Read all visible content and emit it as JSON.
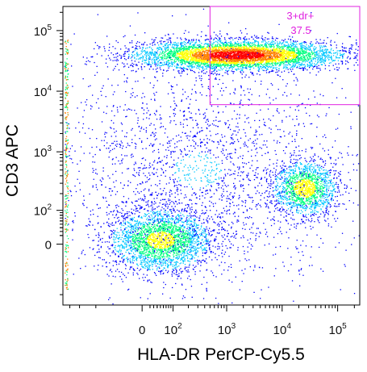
{
  "chart_data": {
    "type": "scatter",
    "title": "",
    "xlabel": "HLA-DR PerCP-Cy5.5",
    "ylabel": "CD3 APC",
    "x_scale": "biexponential",
    "y_scale": "biexponential",
    "xlim": [
      -800,
      250000
    ],
    "ylim": [
      -300,
      250000
    ],
    "x_ticks": [
      {
        "value": 0,
        "base": "0",
        "exp": ""
      },
      {
        "value": 100,
        "base": "10",
        "exp": "2"
      },
      {
        "value": 1000,
        "base": "10",
        "exp": "3"
      },
      {
        "value": 10000,
        "base": "10",
        "exp": "4"
      },
      {
        "value": 100000,
        "base": "10",
        "exp": "5"
      }
    ],
    "y_ticks": [
      {
        "value": 0,
        "base": "0",
        "exp": ""
      },
      {
        "value": 100,
        "base": "10",
        "exp": "2"
      },
      {
        "value": 1000,
        "base": "10",
        "exp": "3"
      },
      {
        "value": 10000,
        "base": "10",
        "exp": "4"
      },
      {
        "value": 100000,
        "base": "10",
        "exp": "5"
      }
    ],
    "populations": [
      {
        "center_x": 1500,
        "center_y": 40000,
        "spread_x": "broad (10^2 to 10^5)",
        "spread_y": "narrow",
        "density": "very high"
      },
      {
        "center_x": 25000,
        "center_y": 250,
        "spread_x": "moderate",
        "spread_y": "moderate",
        "density": "high"
      },
      {
        "center_x": 50,
        "center_y": 10,
        "spread_x": "moderate",
        "spread_y": "broad",
        "density": "high"
      },
      {
        "center_x": 300,
        "center_y": 500,
        "spread_x": "very broad",
        "spread_y": "very broad",
        "density": "low"
      }
    ],
    "gates": [
      {
        "name": "3+dr+",
        "percent": "37.5",
        "x_min": 500,
        "x_max": 250000,
        "y_min": 6000,
        "y_max": 250000,
        "color": "#e020e0"
      }
    ],
    "colormap": [
      "#0000ff",
      "#00c8ff",
      "#00ff80",
      "#ffff00",
      "#ff8000",
      "#ff0000"
    ],
    "grid": false,
    "legend": "none"
  }
}
